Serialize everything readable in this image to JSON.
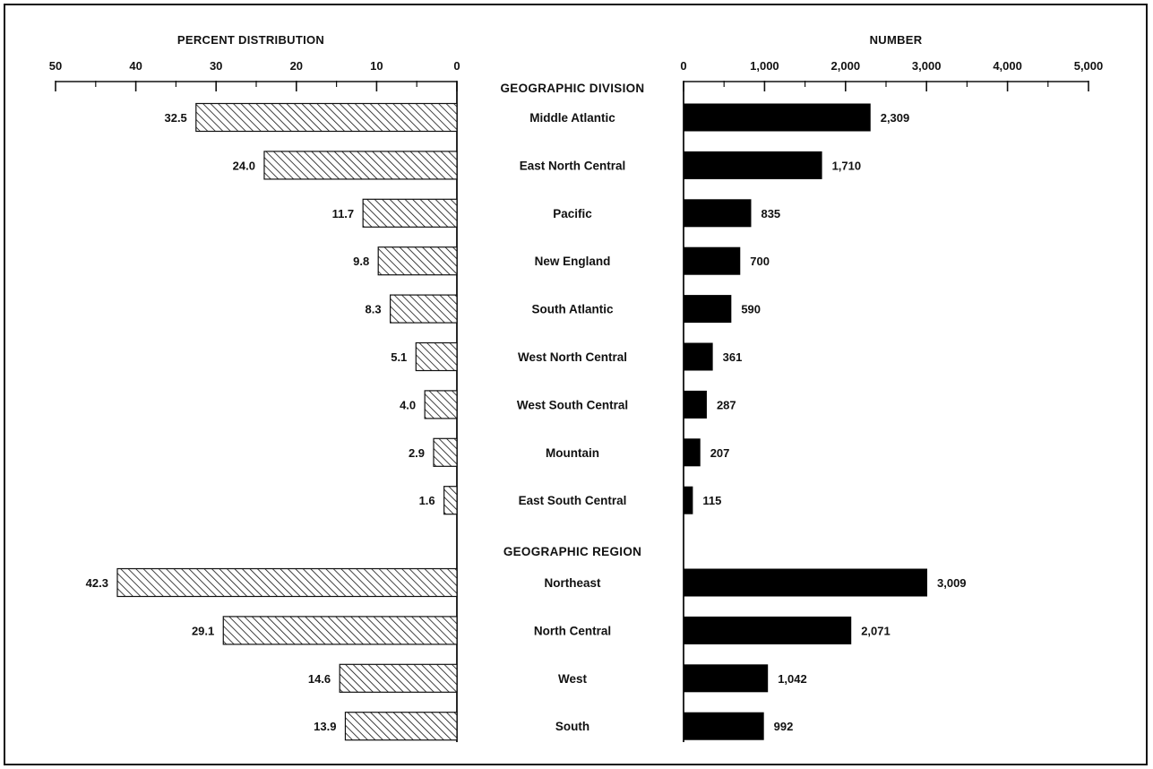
{
  "chart_data": {
    "type": "bar",
    "left_panel": {
      "title": "PERCENT DISTRIBUTION",
      "xlim": [
        50,
        0
      ],
      "ticks": [
        "50",
        "40",
        "30",
        "20",
        "10",
        "0"
      ],
      "tick_values": [
        50,
        40,
        30,
        20,
        10,
        0
      ],
      "pattern": "diagonal-hatch"
    },
    "right_panel": {
      "title": "NUMBER",
      "xlim": [
        0,
        5000
      ],
      "ticks": [
        "0",
        "1,000",
        "2,000",
        "3,000",
        "4,000",
        "5,000"
      ],
      "tick_values": [
        0,
        1000,
        2000,
        3000,
        4000,
        5000
      ],
      "color": "#000000"
    },
    "sections": [
      {
        "title": "GEOGRAPHIC DIVISION",
        "categories": [
          "Middle Atlantic",
          "East North Central",
          "Pacific",
          "New England",
          "South Atlantic",
          "West North Central",
          "West South Central",
          "Mountain",
          "East South Central"
        ],
        "percent_values": [
          32.5,
          24.0,
          11.7,
          9.8,
          8.3,
          5.1,
          4.0,
          2.9,
          1.6
        ],
        "percent_labels": [
          "32.5",
          "24.0",
          "11.7",
          "9.8",
          "8.3",
          "5.1",
          "4.0",
          "2.9",
          "1.6"
        ],
        "number_values": [
          2309,
          1710,
          835,
          700,
          590,
          361,
          287,
          207,
          115
        ],
        "number_labels": [
          "2,309",
          "1,710",
          "835",
          "700",
          "590",
          "361",
          "287",
          "207",
          "115"
        ]
      },
      {
        "title": "GEOGRAPHIC REGION",
        "categories": [
          "Northeast",
          "North Central",
          "West",
          "South"
        ],
        "percent_values": [
          42.3,
          29.1,
          14.6,
          13.9
        ],
        "percent_labels": [
          "42.3",
          "29.1",
          "14.6",
          "13.9"
        ],
        "number_values": [
          3009,
          2071,
          1042,
          992
        ],
        "number_labels": [
          "3,009",
          "2,071",
          "1,042",
          "992"
        ]
      }
    ]
  }
}
